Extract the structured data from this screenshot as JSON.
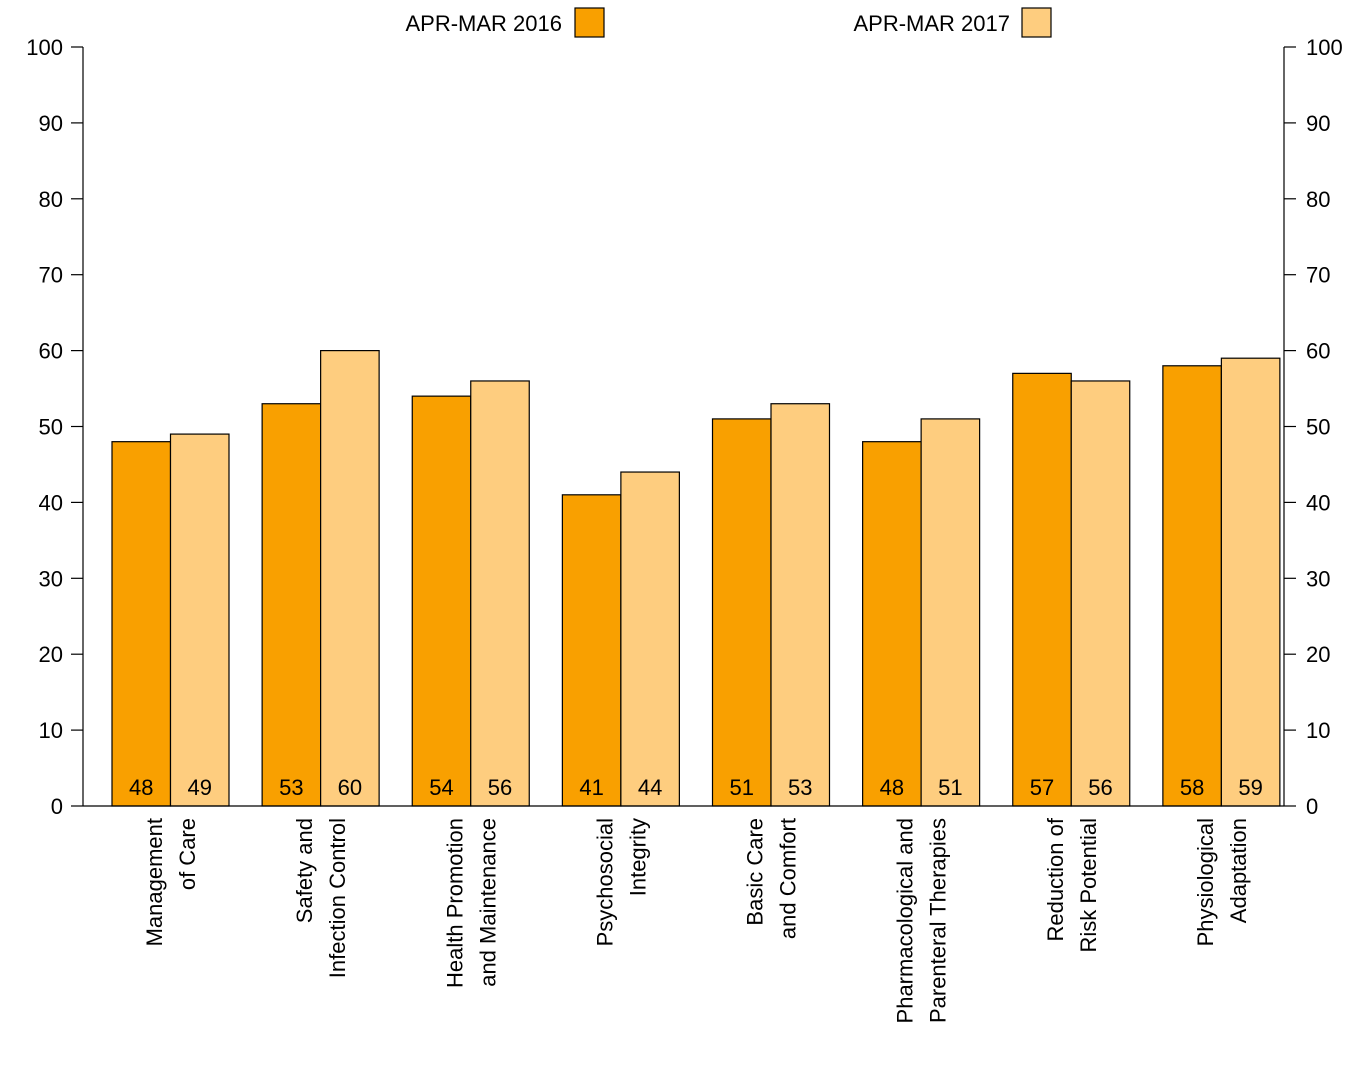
{
  "chart_data": {
    "type": "bar",
    "categories": [
      [
        "Management",
        "of Care"
      ],
      [
        "Safety and",
        "Infection Control"
      ],
      [
        "Health Promotion",
        "and Maintenance"
      ],
      [
        "Psychosocial",
        "Integrity"
      ],
      [
        "Basic Care",
        "and Comfort"
      ],
      [
        "Pharmacological and",
        "Parenteral Therapies"
      ],
      [
        "Reduction of",
        "Risk Potential"
      ],
      [
        "Physiological",
        "Adaptation"
      ]
    ],
    "series": [
      {
        "name": "APR-MAR 2016",
        "color": "#f9a000",
        "values": [
          48,
          53,
          54,
          41,
          51,
          48,
          57,
          58
        ]
      },
      {
        "name": "APR-MAR 2017",
        "color": "#fecd7f",
        "values": [
          49,
          60,
          56,
          44,
          53,
          51,
          56,
          59
        ]
      }
    ],
    "ylim": [
      0,
      100
    ],
    "yticks": [
      0,
      10,
      20,
      30,
      40,
      50,
      60,
      70,
      80,
      90,
      100
    ],
    "legend_position": "top",
    "grid": false,
    "mirror_y_axis": true
  }
}
